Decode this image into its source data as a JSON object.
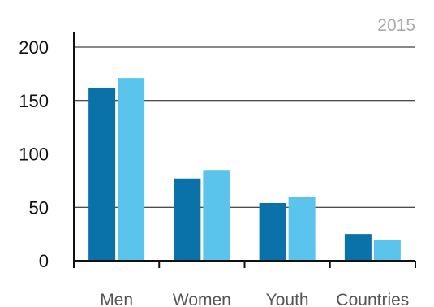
{
  "chart_data": {
    "type": "bar",
    "year_label": "2015",
    "categories": [
      "Men",
      "Women",
      "Youth",
      "Countries"
    ],
    "series": [
      {
        "values": [
          162,
          77,
          54,
          25
        ],
        "color": "#0a72a8"
      },
      {
        "values": [
          171,
          85,
          60,
          19
        ],
        "color": "#5bc4ec"
      }
    ],
    "yticks": [
      0,
      50,
      100,
      150,
      200
    ],
    "ylim": [
      0,
      200
    ],
    "grid": true
  }
}
